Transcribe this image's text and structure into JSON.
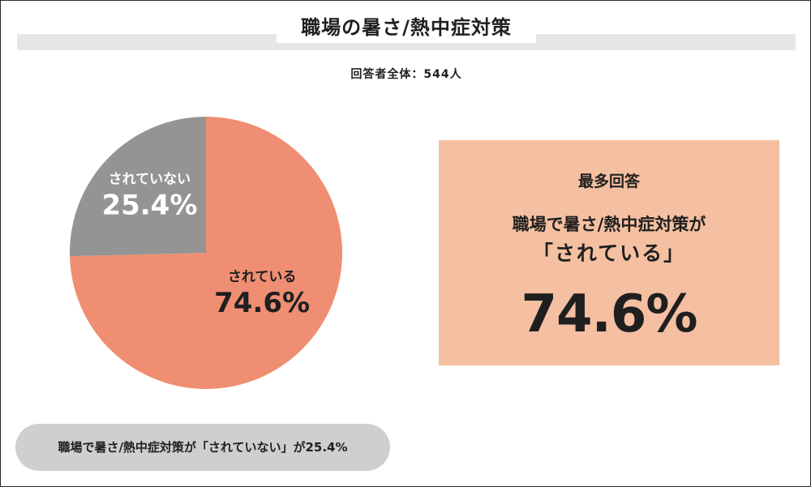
{
  "header": {
    "title": "職場の暑さ/熱中症対策",
    "respondents": "回答者全体：544人"
  },
  "chart_data": {
    "type": "pie",
    "slices": [
      {
        "label": "されている",
        "value": 74.6,
        "display": "74.6%",
        "color": "#ef8e72"
      },
      {
        "label": "されていない",
        "value": 25.4,
        "display": "25.4%",
        "color": "#949494"
      }
    ],
    "start": "12 o'clock",
    "direction": "clockwise"
  },
  "highlight": {
    "heading": "最多回答",
    "line1": "職場で暑さ/熱中症対策が",
    "line2": "「されている」",
    "value": "74.6%",
    "background": "#f4c0a1"
  },
  "footnote": "職場で暑さ/熱中症対策が「されていない」が25.4%"
}
